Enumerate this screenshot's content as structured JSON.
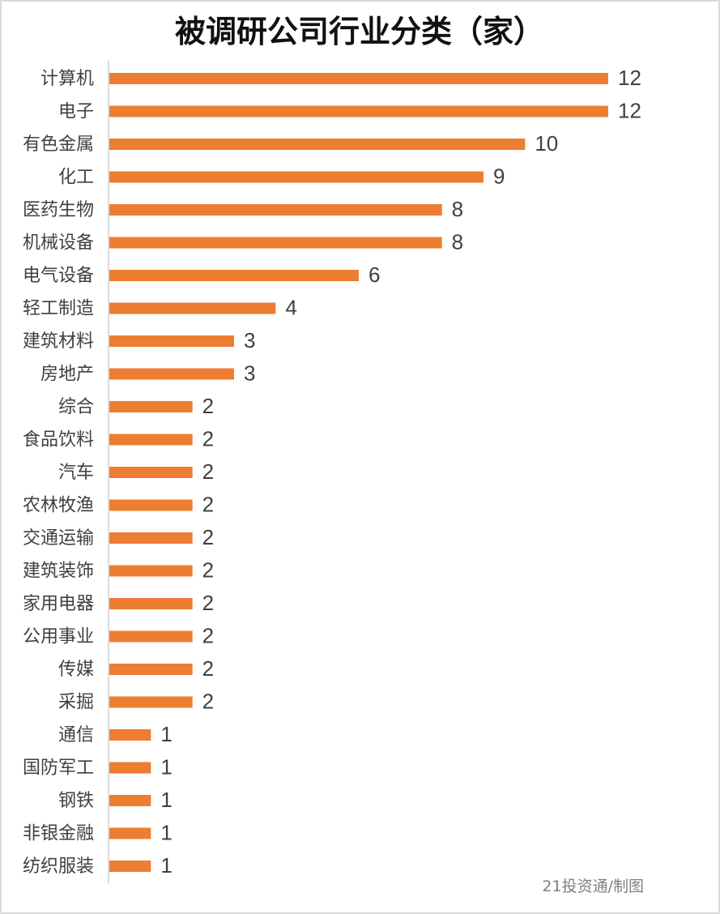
{
  "chart_data": {
    "type": "bar",
    "orientation": "horizontal",
    "title": "被调研公司行业分类（家）",
    "categories": [
      "计算机",
      "电子",
      "有色金属",
      "化工",
      "医药生物",
      "机械设备",
      "电气设备",
      "轻工制造",
      "建筑材料",
      "房地产",
      "综合",
      "食品饮料",
      "汽车",
      "农林牧渔",
      "交通运输",
      "建筑装饰",
      "家用电器",
      "公用事业",
      "传媒",
      "采掘",
      "通信",
      "国防军工",
      "钢铁",
      "非银金融",
      "纺织服装"
    ],
    "values": [
      12,
      12,
      10,
      9,
      8,
      8,
      6,
      4,
      3,
      3,
      2,
      2,
      2,
      2,
      2,
      2,
      2,
      2,
      2,
      2,
      1,
      1,
      1,
      1,
      1
    ],
    "xlim": [
      0,
      12
    ],
    "grid": false,
    "data_labels": true,
    "bar_color": "#ED7D31",
    "source": "21投资通/制图"
  }
}
